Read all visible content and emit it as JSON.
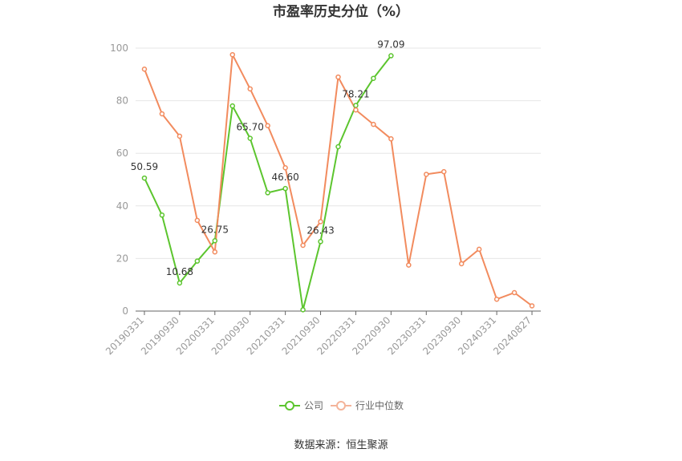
{
  "chart_data": {
    "type": "line",
    "title": "市盈率历史分位（%）",
    "source": "数据来源：恒生聚源",
    "xlabel": "",
    "ylabel": "",
    "ylim": [
      0,
      100
    ],
    "yticks": [
      "0",
      "20",
      "40",
      "60",
      "80",
      "100"
    ],
    "grid": true,
    "legend_position": "bottom-center",
    "x_tick_labels": [
      "20190331",
      "20190930",
      "20200331",
      "20200930",
      "20210331",
      "20210930",
      "20220331",
      "20220930",
      "20230331",
      "20230930",
      "20240331",
      "20240827"
    ],
    "x": [
      "20190331",
      "20190630",
      "20190930",
      "20191231",
      "20200331",
      "20200630",
      "20200930",
      "20201231",
      "20210331",
      "20210630",
      "20210930",
      "20211231",
      "20220331",
      "20220630",
      "20220930",
      "20221231",
      "20230331",
      "20230630",
      "20230930",
      "20231231",
      "20240331",
      "20240630",
      "20240827"
    ],
    "series": [
      {
        "name": "公司",
        "color": "#5cc52e",
        "values": [
          50.59,
          36.5,
          10.68,
          19.0,
          26.75,
          78.0,
          65.7,
          45.0,
          46.6,
          0.5,
          26.43,
          62.5,
          78.21,
          88.5,
          97.09,
          null,
          null,
          null,
          null,
          null,
          null,
          null,
          null
        ],
        "labels": {
          "0": "50.59",
          "2": "10.68",
          "4": "26.75",
          "6": "65.70",
          "8": "46.60",
          "10": "26.43",
          "12": "78.21",
          "14": "97.09"
        }
      },
      {
        "name": "行业中位数",
        "color": "#f28b5e",
        "values": [
          92.0,
          75.0,
          66.5,
          34.5,
          22.5,
          97.5,
          84.5,
          70.5,
          54.5,
          25.0,
          34.0,
          89.0,
          76.5,
          71.0,
          65.5,
          17.5,
          52.0,
          53.0,
          18.0,
          23.5,
          4.5,
          7.0,
          2.0
        ]
      }
    ]
  }
}
